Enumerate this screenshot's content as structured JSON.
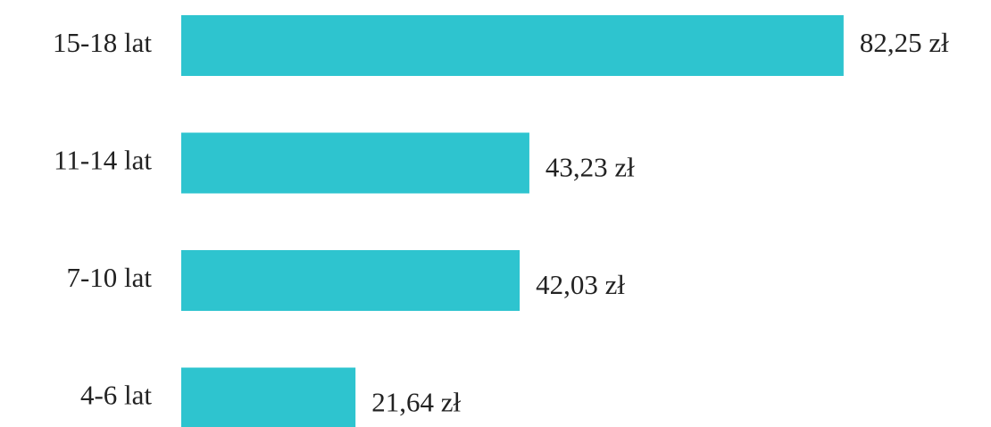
{
  "chart_data": {
    "type": "bar",
    "orientation": "horizontal",
    "categories": [
      "15-18 lat",
      "11-14 lat",
      "7-10 lat",
      "4-6 lat"
    ],
    "values": [
      82.25,
      43.23,
      42.03,
      21.64
    ],
    "value_labels": [
      "82,25 zł",
      "43,23 zł",
      "42,03 zł",
      "21,64 zł"
    ],
    "color": "#2ec4cf"
  }
}
